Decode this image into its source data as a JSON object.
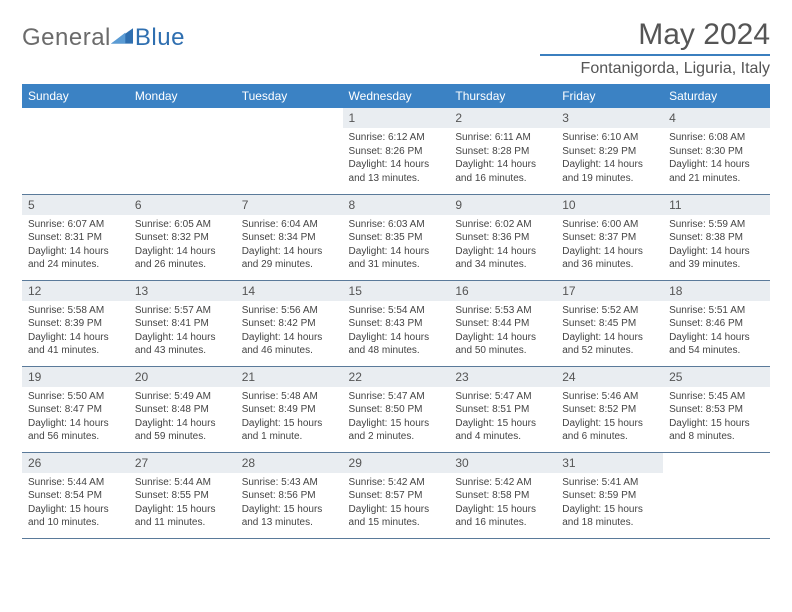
{
  "logo": {
    "textLeft": "General",
    "textRight": "Blue",
    "triangleColor": "#2f6fb0"
  },
  "title": "May 2024",
  "location": "Fontanigorda, Liguria, Italy",
  "headerColor": "#3b82c4",
  "dayHeaders": [
    "Sunday",
    "Monday",
    "Tuesday",
    "Wednesday",
    "Thursday",
    "Friday",
    "Saturday"
  ],
  "weeks": [
    [
      null,
      null,
      null,
      {
        "n": "1",
        "sr": "6:12 AM",
        "ss": "8:26 PM",
        "dl": "14 hours and 13 minutes."
      },
      {
        "n": "2",
        "sr": "6:11 AM",
        "ss": "8:28 PM",
        "dl": "14 hours and 16 minutes."
      },
      {
        "n": "3",
        "sr": "6:10 AM",
        "ss": "8:29 PM",
        "dl": "14 hours and 19 minutes."
      },
      {
        "n": "4",
        "sr": "6:08 AM",
        "ss": "8:30 PM",
        "dl": "14 hours and 21 minutes."
      }
    ],
    [
      {
        "n": "5",
        "sr": "6:07 AM",
        "ss": "8:31 PM",
        "dl": "14 hours and 24 minutes."
      },
      {
        "n": "6",
        "sr": "6:05 AM",
        "ss": "8:32 PM",
        "dl": "14 hours and 26 minutes."
      },
      {
        "n": "7",
        "sr": "6:04 AM",
        "ss": "8:34 PM",
        "dl": "14 hours and 29 minutes."
      },
      {
        "n": "8",
        "sr": "6:03 AM",
        "ss": "8:35 PM",
        "dl": "14 hours and 31 minutes."
      },
      {
        "n": "9",
        "sr": "6:02 AM",
        "ss": "8:36 PM",
        "dl": "14 hours and 34 minutes."
      },
      {
        "n": "10",
        "sr": "6:00 AM",
        "ss": "8:37 PM",
        "dl": "14 hours and 36 minutes."
      },
      {
        "n": "11",
        "sr": "5:59 AM",
        "ss": "8:38 PM",
        "dl": "14 hours and 39 minutes."
      }
    ],
    [
      {
        "n": "12",
        "sr": "5:58 AM",
        "ss": "8:39 PM",
        "dl": "14 hours and 41 minutes."
      },
      {
        "n": "13",
        "sr": "5:57 AM",
        "ss": "8:41 PM",
        "dl": "14 hours and 43 minutes."
      },
      {
        "n": "14",
        "sr": "5:56 AM",
        "ss": "8:42 PM",
        "dl": "14 hours and 46 minutes."
      },
      {
        "n": "15",
        "sr": "5:54 AM",
        "ss": "8:43 PM",
        "dl": "14 hours and 48 minutes."
      },
      {
        "n": "16",
        "sr": "5:53 AM",
        "ss": "8:44 PM",
        "dl": "14 hours and 50 minutes."
      },
      {
        "n": "17",
        "sr": "5:52 AM",
        "ss": "8:45 PM",
        "dl": "14 hours and 52 minutes."
      },
      {
        "n": "18",
        "sr": "5:51 AM",
        "ss": "8:46 PM",
        "dl": "14 hours and 54 minutes."
      }
    ],
    [
      {
        "n": "19",
        "sr": "5:50 AM",
        "ss": "8:47 PM",
        "dl": "14 hours and 56 minutes."
      },
      {
        "n": "20",
        "sr": "5:49 AM",
        "ss": "8:48 PM",
        "dl": "14 hours and 59 minutes."
      },
      {
        "n": "21",
        "sr": "5:48 AM",
        "ss": "8:49 PM",
        "dl": "15 hours and 1 minute."
      },
      {
        "n": "22",
        "sr": "5:47 AM",
        "ss": "8:50 PM",
        "dl": "15 hours and 2 minutes."
      },
      {
        "n": "23",
        "sr": "5:47 AM",
        "ss": "8:51 PM",
        "dl": "15 hours and 4 minutes."
      },
      {
        "n": "24",
        "sr": "5:46 AM",
        "ss": "8:52 PM",
        "dl": "15 hours and 6 minutes."
      },
      {
        "n": "25",
        "sr": "5:45 AM",
        "ss": "8:53 PM",
        "dl": "15 hours and 8 minutes."
      }
    ],
    [
      {
        "n": "26",
        "sr": "5:44 AM",
        "ss": "8:54 PM",
        "dl": "15 hours and 10 minutes."
      },
      {
        "n": "27",
        "sr": "5:44 AM",
        "ss": "8:55 PM",
        "dl": "15 hours and 11 minutes."
      },
      {
        "n": "28",
        "sr": "5:43 AM",
        "ss": "8:56 PM",
        "dl": "15 hours and 13 minutes."
      },
      {
        "n": "29",
        "sr": "5:42 AM",
        "ss": "8:57 PM",
        "dl": "15 hours and 15 minutes."
      },
      {
        "n": "30",
        "sr": "5:42 AM",
        "ss": "8:58 PM",
        "dl": "15 hours and 16 minutes."
      },
      {
        "n": "31",
        "sr": "5:41 AM",
        "ss": "8:59 PM",
        "dl": "15 hours and 18 minutes."
      },
      null
    ]
  ],
  "labels": {
    "sunrise": "Sunrise:",
    "sunset": "Sunset:",
    "daylight": "Daylight:"
  }
}
